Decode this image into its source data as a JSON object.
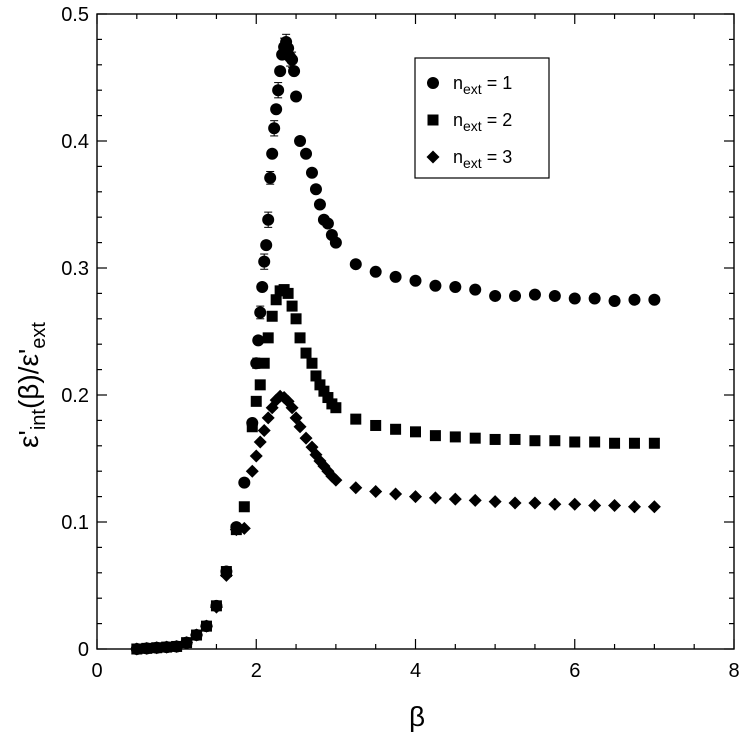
{
  "colors": {
    "marker": "#000000",
    "background": "#ffffff"
  },
  "chart_data": {
    "type": "scatter",
    "title": "",
    "xlabel": "β",
    "ylabel_main": "ε'",
    "ylabel_sub1": "int",
    "ylabel_mid": "(β)/ε'",
    "ylabel_sub2": "ext",
    "xlim": [
      0,
      8
    ],
    "ylim": [
      0,
      0.5
    ],
    "x_ticks": [
      0,
      2,
      4,
      6,
      8
    ],
    "x_tick_labels": [
      "0",
      "2",
      "4",
      "6",
      "8"
    ],
    "y_ticks": [
      0,
      0.1,
      0.2,
      0.3,
      0.4,
      0.5
    ],
    "y_tick_labels": [
      "0",
      "0.1",
      "0.2",
      "0.3",
      "0.4",
      "0.5"
    ],
    "x_minor_step": 0.5,
    "y_minor_step": 0.02,
    "grid": false,
    "legend_position": "top-right",
    "legend": [
      {
        "marker": "circle",
        "n_label": "n",
        "sub": "ext",
        "rest": " = 1"
      },
      {
        "marker": "square",
        "n_label": "n",
        "sub": "ext",
        "rest": " = 2"
      },
      {
        "marker": "diamond",
        "n_label": "n",
        "sub": "ext",
        "rest": " = 3"
      }
    ],
    "series": [
      {
        "name": "n_ext = 1",
        "marker": "circle",
        "points": [
          [
            0.5,
            0.0
          ],
          [
            0.625,
            0.0005
          ],
          [
            0.75,
            0.001
          ],
          [
            0.875,
            0.0015
          ],
          [
            1.0,
            0.002
          ],
          [
            1.125,
            0.005
          ],
          [
            1.25,
            0.011
          ],
          [
            1.375,
            0.018
          ],
          [
            1.5,
            0.034
          ],
          [
            1.625,
            0.061
          ],
          [
            1.75,
            0.096
          ],
          [
            1.85,
            0.131
          ],
          [
            1.95,
            0.178
          ],
          [
            2.0,
            0.225
          ],
          [
            2.025,
            0.243
          ],
          [
            2.05,
            0.265
          ],
          [
            2.075,
            0.285
          ],
          [
            2.1,
            0.305
          ],
          [
            2.125,
            0.318
          ],
          [
            2.15,
            0.338
          ],
          [
            2.175,
            0.371
          ],
          [
            2.2,
            0.39
          ],
          [
            2.225,
            0.41
          ],
          [
            2.25,
            0.425
          ],
          [
            2.275,
            0.44
          ],
          [
            2.3,
            0.455
          ],
          [
            2.325,
            0.468
          ],
          [
            2.35,
            0.474
          ],
          [
            2.375,
            0.478
          ],
          [
            2.4,
            0.473
          ],
          [
            2.425,
            0.466
          ],
          [
            2.45,
            0.464
          ],
          [
            2.475,
            0.455
          ],
          [
            2.5,
            0.435
          ],
          [
            2.55,
            0.4
          ],
          [
            2.625,
            0.39
          ],
          [
            2.7,
            0.375
          ],
          [
            2.75,
            0.362
          ],
          [
            2.8,
            0.35
          ],
          [
            2.85,
            0.338
          ],
          [
            2.9,
            0.335
          ],
          [
            2.95,
            0.326
          ],
          [
            3.0,
            0.32
          ],
          [
            3.25,
            0.303
          ],
          [
            3.5,
            0.297
          ],
          [
            3.75,
            0.293
          ],
          [
            4.0,
            0.29
          ],
          [
            4.25,
            0.286
          ],
          [
            4.5,
            0.285
          ],
          [
            4.75,
            0.283
          ],
          [
            5.0,
            0.278
          ],
          [
            5.25,
            0.278
          ],
          [
            5.5,
            0.279
          ],
          [
            5.75,
            0.278
          ],
          [
            6.0,
            0.276
          ],
          [
            6.25,
            0.276
          ],
          [
            6.5,
            0.274
          ],
          [
            6.75,
            0.275
          ],
          [
            7.0,
            0.275
          ]
        ]
      },
      {
        "name": "n_ext = 2",
        "marker": "square",
        "points": [
          [
            0.5,
            0.0
          ],
          [
            0.625,
            0.0005
          ],
          [
            0.75,
            0.001
          ],
          [
            0.875,
            0.0015
          ],
          [
            1.0,
            0.002
          ],
          [
            1.125,
            0.005
          ],
          [
            1.25,
            0.011
          ],
          [
            1.375,
            0.018
          ],
          [
            1.5,
            0.034
          ],
          [
            1.625,
            0.061
          ],
          [
            1.75,
            0.094
          ],
          [
            1.85,
            0.112
          ],
          [
            1.95,
            0.175
          ],
          [
            2.0,
            0.195
          ],
          [
            2.05,
            0.208
          ],
          [
            2.1,
            0.225
          ],
          [
            2.15,
            0.245
          ],
          [
            2.2,
            0.262
          ],
          [
            2.25,
            0.275
          ],
          [
            2.3,
            0.282
          ],
          [
            2.35,
            0.283
          ],
          [
            2.4,
            0.28
          ],
          [
            2.45,
            0.27
          ],
          [
            2.5,
            0.26
          ],
          [
            2.55,
            0.245
          ],
          [
            2.625,
            0.233
          ],
          [
            2.7,
            0.225
          ],
          [
            2.75,
            0.215
          ],
          [
            2.8,
            0.208
          ],
          [
            2.85,
            0.203
          ],
          [
            2.9,
            0.198
          ],
          [
            2.95,
            0.193
          ],
          [
            3.0,
            0.19
          ],
          [
            3.25,
            0.181
          ],
          [
            3.5,
            0.176
          ],
          [
            3.75,
            0.173
          ],
          [
            4.0,
            0.171
          ],
          [
            4.25,
            0.168
          ],
          [
            4.5,
            0.167
          ],
          [
            4.75,
            0.166
          ],
          [
            5.0,
            0.165
          ],
          [
            5.25,
            0.165
          ],
          [
            5.5,
            0.164
          ],
          [
            5.75,
            0.164
          ],
          [
            6.0,
            0.163
          ],
          [
            6.25,
            0.163
          ],
          [
            6.5,
            0.162
          ],
          [
            6.75,
            0.162
          ],
          [
            7.0,
            0.162
          ]
        ]
      },
      {
        "name": "n_ext = 3",
        "marker": "diamond",
        "points": [
          [
            0.5,
            0.0
          ],
          [
            0.625,
            0.0005
          ],
          [
            0.75,
            0.001
          ],
          [
            0.875,
            0.0015
          ],
          [
            1.0,
            0.002
          ],
          [
            1.125,
            0.005
          ],
          [
            1.25,
            0.011
          ],
          [
            1.375,
            0.018
          ],
          [
            1.5,
            0.033
          ],
          [
            1.625,
            0.058
          ],
          [
            1.75,
            0.094
          ],
          [
            1.85,
            0.095
          ],
          [
            1.95,
            0.14
          ],
          [
            2.0,
            0.152
          ],
          [
            2.05,
            0.163
          ],
          [
            2.1,
            0.172
          ],
          [
            2.15,
            0.182
          ],
          [
            2.2,
            0.19
          ],
          [
            2.25,
            0.196
          ],
          [
            2.3,
            0.199
          ],
          [
            2.35,
            0.198
          ],
          [
            2.4,
            0.195
          ],
          [
            2.45,
            0.19
          ],
          [
            2.5,
            0.182
          ],
          [
            2.55,
            0.175
          ],
          [
            2.625,
            0.166
          ],
          [
            2.7,
            0.159
          ],
          [
            2.75,
            0.153
          ],
          [
            2.8,
            0.148
          ],
          [
            2.85,
            0.144
          ],
          [
            2.9,
            0.14
          ],
          [
            2.95,
            0.136
          ],
          [
            3.0,
            0.133
          ],
          [
            3.25,
            0.127
          ],
          [
            3.5,
            0.124
          ],
          [
            3.75,
            0.122
          ],
          [
            4.0,
            0.12
          ],
          [
            4.25,
            0.119
          ],
          [
            4.5,
            0.118
          ],
          [
            4.75,
            0.117
          ],
          [
            5.0,
            0.116
          ],
          [
            5.25,
            0.115
          ],
          [
            5.5,
            0.115
          ],
          [
            5.75,
            0.114
          ],
          [
            6.0,
            0.114
          ],
          [
            6.25,
            0.113
          ],
          [
            6.5,
            0.113
          ],
          [
            6.75,
            0.112
          ],
          [
            7.0,
            0.112
          ]
        ]
      }
    ],
    "error_bars": [
      [
        2.1,
        0.305,
        0.006
      ],
      [
        2.15,
        0.338,
        0.006
      ],
      [
        2.175,
        0.371,
        0.005
      ],
      [
        2.225,
        0.41,
        0.006
      ],
      [
        2.275,
        0.44,
        0.006
      ],
      [
        2.35,
        0.474,
        0.007
      ],
      [
        2.375,
        0.478,
        0.006
      ],
      [
        2.425,
        0.466,
        0.007
      ],
      [
        2.45,
        0.464,
        0.006
      ],
      [
        2.05,
        0.265,
        0.005
      ],
      [
        2.0,
        0.225,
        0.004
      ]
    ]
  }
}
